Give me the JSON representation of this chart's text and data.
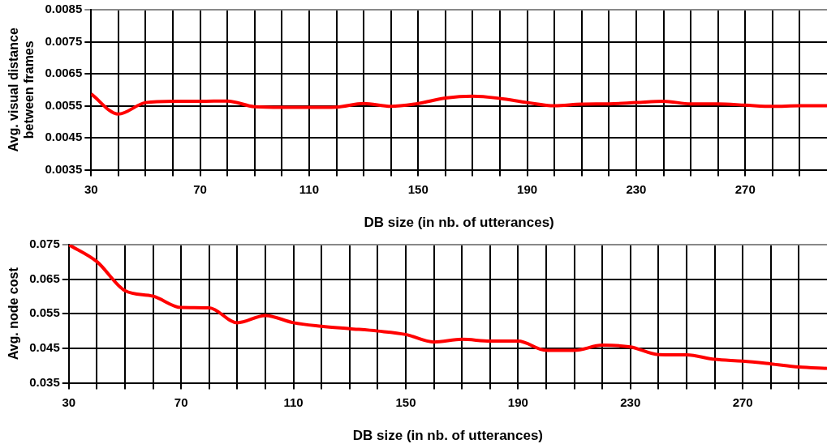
{
  "chart_data": [
    {
      "type": "line",
      "xlabel": "DB size (in nb. of utterances)",
      "ylabel": "Avg. visual distance between frames",
      "x": [
        30,
        40,
        50,
        60,
        70,
        80,
        90,
        100,
        110,
        120,
        130,
        140,
        150,
        160,
        170,
        180,
        190,
        200,
        210,
        220,
        230,
        240,
        250,
        260,
        270,
        280,
        290,
        300
      ],
      "series": [
        {
          "color": "#ff0000",
          "values": [
            0.00587,
            0.00524,
            0.0056,
            0.00564,
            0.00564,
            0.00565,
            0.00547,
            0.00545,
            0.00545,
            0.00546,
            0.00557,
            0.00548,
            0.00557,
            0.00574,
            0.0058,
            0.00573,
            0.0056,
            0.0055,
            0.00555,
            0.00556,
            0.0056,
            0.00564,
            0.00556,
            0.00556,
            0.00552,
            0.00548,
            0.0055,
            0.0055
          ]
        }
      ],
      "xlim": [
        30,
        300
      ],
      "xticks": [
        30,
        {
          "value": 40,
          "label": null
        },
        {
          "value": 50,
          "label": null
        },
        {
          "value": 60,
          "label": null
        },
        70,
        {
          "value": 80,
          "label": null
        },
        {
          "value": 90,
          "label": null
        },
        {
          "value": 100,
          "label": null
        },
        110,
        {
          "value": 120,
          "label": null
        },
        {
          "value": 130,
          "label": null
        },
        {
          "value": 140,
          "label": null
        },
        150,
        {
          "value": 160,
          "label": null
        },
        {
          "value": 170,
          "label": null
        },
        {
          "value": 180,
          "label": null
        },
        190,
        {
          "value": 200,
          "label": null
        },
        {
          "value": 210,
          "label": null
        },
        {
          "value": 220,
          "label": null
        },
        230,
        {
          "value": 240,
          "label": null
        },
        {
          "value": 250,
          "label": null
        },
        {
          "value": 260,
          "label": null
        },
        270,
        {
          "value": 280,
          "label": null
        },
        {
          "value": 290,
          "label": null
        }
      ],
      "ylim": [
        0.0035,
        0.0085
      ],
      "yticks": [
        0.0035,
        0.0045,
        0.0055,
        0.0065,
        0.0075,
        0.0085
      ],
      "grid": true,
      "legend": false
    },
    {
      "type": "line",
      "xlabel": "DB size (in nb. of utterances)",
      "ylabel": "Avg. node cost",
      "x": [
        30,
        40,
        50,
        60,
        70,
        80,
        90,
        100,
        110,
        120,
        130,
        140,
        150,
        160,
        170,
        180,
        190,
        200,
        210,
        220,
        230,
        240,
        250,
        260,
        270,
        280,
        290,
        300
      ],
      "series": [
        {
          "color": "#ff0000",
          "values": [
            0.075,
            0.0701,
            0.0617,
            0.0601,
            0.0568,
            0.0567,
            0.0524,
            0.0545,
            0.0524,
            0.0514,
            0.0507,
            0.05,
            0.049,
            0.0468,
            0.0476,
            0.0471,
            0.0471,
            0.0444,
            0.0444,
            0.0459,
            0.0454,
            0.0432,
            0.0431,
            0.0418,
            0.0413,
            0.0405,
            0.0396,
            0.0392
          ]
        }
      ],
      "xlim": [
        30,
        300
      ],
      "xticks": [
        30,
        {
          "value": 40,
          "label": null
        },
        {
          "value": 50,
          "label": null
        },
        {
          "value": 60,
          "label": null
        },
        70,
        {
          "value": 80,
          "label": null
        },
        {
          "value": 90,
          "label": null
        },
        {
          "value": 100,
          "label": null
        },
        110,
        {
          "value": 120,
          "label": null
        },
        {
          "value": 130,
          "label": null
        },
        {
          "value": 140,
          "label": null
        },
        150,
        {
          "value": 160,
          "label": null
        },
        {
          "value": 170,
          "label": null
        },
        {
          "value": 180,
          "label": null
        },
        190,
        {
          "value": 200,
          "label": null
        },
        {
          "value": 210,
          "label": null
        },
        {
          "value": 220,
          "label": null
        },
        230,
        {
          "value": 240,
          "label": null
        },
        {
          "value": 250,
          "label": null
        },
        {
          "value": 260,
          "label": null
        },
        270,
        {
          "value": 280,
          "label": null
        },
        {
          "value": 290,
          "label": null
        }
      ],
      "ylim": [
        0.035,
        0.075
      ],
      "yticks": [
        0.035,
        0.045,
        0.055,
        0.065,
        0.075
      ],
      "grid": true,
      "legend": false
    }
  ]
}
